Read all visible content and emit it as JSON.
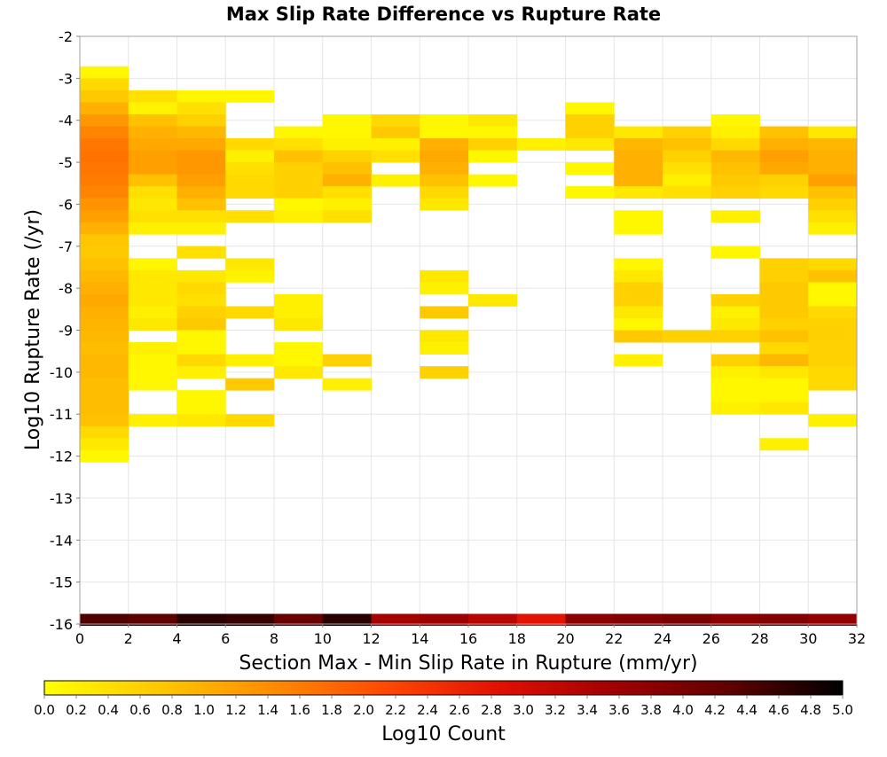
{
  "chart_data": {
    "type": "heatmap",
    "title": "Max Slip Rate Difference vs Rupture Rate",
    "xlabel": "Section Max - Min Slip Rate in Rupture (mm/yr)",
    "ylabel": "Log10 Rupture Rate (/yr)",
    "xlim": [
      0,
      32
    ],
    "ylim": [
      -16,
      -2
    ],
    "x_ticks": [
      "0",
      "2",
      "4",
      "6",
      "8",
      "10",
      "12",
      "14",
      "16",
      "18",
      "20",
      "22",
      "24",
      "26",
      "28",
      "30",
      "32"
    ],
    "y_ticks": [
      "-2",
      "-3",
      "-4",
      "-5",
      "-6",
      "-7",
      "-8",
      "-9",
      "-10",
      "-11",
      "-12",
      "-13",
      "-14",
      "-15",
      "-16"
    ],
    "x_bin_width": 2,
    "y_bin_height": 0.2857,
    "grid": true,
    "colorbar": {
      "label": "Log10 Count",
      "min": 0,
      "max": 5,
      "ticks": [
        "0.0",
        "0.2",
        "0.4",
        "0.6",
        "0.8",
        "1.0",
        "1.2",
        "1.4",
        "1.6",
        "1.8",
        "2.0",
        "2.2",
        "2.4",
        "2.6",
        "2.8",
        "3.0",
        "3.2",
        "3.4",
        "3.6",
        "3.8",
        "4.0",
        "4.2",
        "4.4",
        "4.6",
        "4.8",
        "5.0"
      ],
      "stops": [
        "#ffff00",
        "#ffc800",
        "#ff8c00",
        "#ff4800",
        "#e01000",
        "#a00000",
        "#600000",
        "#000000"
      ]
    },
    "column_centers": [
      1,
      3,
      5,
      7,
      9,
      11,
      13,
      15,
      17,
      19,
      21,
      23,
      25,
      27,
      29,
      31
    ],
    "columns": [
      {
        "x": 1,
        "cells": [
          [
            -2.857,
            0.12
          ],
          [
            -3.143,
            0.5
          ],
          [
            -3.429,
            0.7
          ],
          [
            -3.714,
            1.0
          ],
          [
            -4.0,
            1.3
          ],
          [
            -4.286,
            1.5
          ],
          [
            -4.571,
            1.65
          ],
          [
            -4.857,
            1.7
          ],
          [
            -5.143,
            1.65
          ],
          [
            -5.429,
            1.6
          ],
          [
            -5.714,
            1.5
          ],
          [
            -6.0,
            1.35
          ],
          [
            -6.286,
            1.2
          ],
          [
            -6.571,
            1.0
          ],
          [
            -6.857,
            0.75
          ],
          [
            -7.143,
            0.7
          ],
          [
            -7.429,
            0.8
          ],
          [
            -7.714,
            0.9
          ],
          [
            -8.0,
            1.0
          ],
          [
            -8.286,
            1.1
          ],
          [
            -8.571,
            1.0
          ],
          [
            -8.857,
            0.95
          ],
          [
            -9.143,
            0.9
          ],
          [
            -9.429,
            0.85
          ],
          [
            -9.714,
            0.9
          ],
          [
            -10.0,
            0.9
          ],
          [
            -10.286,
            0.85
          ],
          [
            -10.571,
            0.85
          ],
          [
            -10.857,
            0.85
          ],
          [
            -11.143,
            0.8
          ],
          [
            -11.429,
            0.5
          ],
          [
            -11.714,
            0.3
          ],
          [
            -12.0,
            0.1
          ]
        ]
      },
      {
        "x": 3,
        "cells": [
          [
            -3.429,
            0.4
          ],
          [
            -3.714,
            0.15
          ],
          [
            -4.0,
            0.8
          ],
          [
            -4.286,
            1.0
          ],
          [
            -4.571,
            1.1
          ],
          [
            -4.857,
            1.2
          ],
          [
            -5.143,
            1.2
          ],
          [
            -5.429,
            0.8
          ],
          [
            -5.714,
            0.4
          ],
          [
            -6.0,
            0.3
          ],
          [
            -6.286,
            0.4
          ],
          [
            -6.571,
            0.2
          ],
          [
            -7.429,
            0.12
          ],
          [
            -7.714,
            0.3
          ],
          [
            -8.0,
            0.3
          ],
          [
            -8.286,
            0.3
          ],
          [
            -8.571,
            0.2
          ],
          [
            -8.857,
            0.3
          ],
          [
            -9.429,
            0.2
          ],
          [
            -9.714,
            0.1
          ],
          [
            -10.0,
            0.1
          ],
          [
            -10.286,
            0.1
          ],
          [
            -11.143,
            0.2
          ]
        ]
      },
      {
        "x": 5,
        "cells": [
          [
            -3.429,
            0.12
          ],
          [
            -3.714,
            0.4
          ],
          [
            -4.0,
            0.6
          ],
          [
            -4.286,
            0.9
          ],
          [
            -4.571,
            1.1
          ],
          [
            -4.857,
            1.3
          ],
          [
            -5.143,
            1.3
          ],
          [
            -5.429,
            1.2
          ],
          [
            -5.714,
            1.0
          ],
          [
            -6.0,
            0.8
          ],
          [
            -6.286,
            0.4
          ],
          [
            -6.571,
            0.2
          ],
          [
            -7.143,
            0.4
          ],
          [
            -7.714,
            0.3
          ],
          [
            -8.0,
            0.5
          ],
          [
            -8.286,
            0.4
          ],
          [
            -8.571,
            0.6
          ],
          [
            -8.857,
            0.7
          ],
          [
            -9.143,
            0.1
          ],
          [
            -9.429,
            0.1
          ],
          [
            -9.714,
            0.5
          ],
          [
            -10.0,
            0.2
          ],
          [
            -10.571,
            0.1
          ],
          [
            -10.857,
            0.1
          ],
          [
            -11.143,
            0.3
          ]
        ]
      },
      {
        "x": 7,
        "cells": [
          [
            -3.429,
            0.12
          ],
          [
            -4.571,
            0.5
          ],
          [
            -4.857,
            0.2
          ],
          [
            -5.143,
            0.4
          ],
          [
            -5.429,
            0.5
          ],
          [
            -5.714,
            0.5
          ],
          [
            -6.286,
            0.4
          ],
          [
            -7.429,
            0.3
          ],
          [
            -7.714,
            0.15
          ],
          [
            -8.571,
            0.5
          ],
          [
            -9.714,
            0.2
          ],
          [
            -10.286,
            0.7
          ],
          [
            -11.143,
            0.5
          ]
        ]
      },
      {
        "x": 9,
        "cells": [
          [
            -4.286,
            0.1
          ],
          [
            -4.571,
            0.4
          ],
          [
            -4.857,
            0.8
          ],
          [
            -5.143,
            0.6
          ],
          [
            -5.429,
            0.6
          ],
          [
            -5.714,
            0.6
          ],
          [
            -6.0,
            0.1
          ],
          [
            -6.286,
            0.2
          ],
          [
            -8.286,
            0.2
          ],
          [
            -8.571,
            0.2
          ],
          [
            -8.857,
            0.3
          ],
          [
            -9.429,
            0.1
          ],
          [
            -9.714,
            0.1
          ],
          [
            -10.0,
            0.3
          ]
        ]
      },
      {
        "x": 11,
        "cells": [
          [
            -4.0,
            0.1
          ],
          [
            -4.286,
            0.1
          ],
          [
            -4.571,
            0.2
          ],
          [
            -4.857,
            0.6
          ],
          [
            -5.143,
            0.8
          ],
          [
            -5.429,
            1.0
          ],
          [
            -5.714,
            0.4
          ],
          [
            -6.0,
            0.2
          ],
          [
            -6.286,
            0.4
          ],
          [
            -9.714,
            0.6
          ],
          [
            -10.286,
            0.2
          ]
        ]
      },
      {
        "x": 13,
        "cells": [
          [
            -4.0,
            0.5
          ],
          [
            -4.286,
            0.7
          ],
          [
            -4.571,
            0.2
          ],
          [
            -4.857,
            0.4
          ],
          [
            -5.429,
            0.2
          ]
        ]
      },
      {
        "x": 15,
        "cells": [
          [
            -4.0,
            0.1
          ],
          [
            -4.286,
            0.1
          ],
          [
            -4.571,
            1.0
          ],
          [
            -4.857,
            1.1
          ],
          [
            -5.143,
            1.0
          ],
          [
            -5.429,
            0.8
          ],
          [
            -5.714,
            0.5
          ],
          [
            -6.0,
            0.3
          ],
          [
            -7.714,
            0.3
          ],
          [
            -8.0,
            0.2
          ],
          [
            -8.571,
            0.7
          ],
          [
            -9.143,
            0.3
          ],
          [
            -9.429,
            0.2
          ],
          [
            -10.0,
            0.6
          ]
        ]
      },
      {
        "x": 17,
        "cells": [
          [
            -4.0,
            0.3
          ],
          [
            -4.286,
            0.1
          ],
          [
            -4.571,
            0.6
          ],
          [
            -4.857,
            0.1
          ],
          [
            -5.429,
            0.1
          ],
          [
            -8.286,
            0.3
          ]
        ]
      },
      {
        "x": 19,
        "cells": [
          [
            -4.571,
            0.2
          ]
        ]
      },
      {
        "x": 21,
        "cells": [
          [
            -3.714,
            0.1
          ],
          [
            -4.0,
            0.6
          ],
          [
            -4.286,
            0.6
          ],
          [
            -4.571,
            0.3
          ],
          [
            -5.143,
            0.1
          ],
          [
            -5.714,
            0.1
          ]
        ]
      },
      {
        "x": 23,
        "cells": [
          [
            -4.286,
            0.3
          ],
          [
            -4.571,
            0.9
          ],
          [
            -4.857,
            1.0
          ],
          [
            -5.143,
            1.0
          ],
          [
            -5.429,
            1.0
          ],
          [
            -5.714,
            0.3
          ],
          [
            -6.286,
            0.1
          ],
          [
            -6.571,
            0.1
          ],
          [
            -7.429,
            0.1
          ],
          [
            -7.714,
            0.3
          ],
          [
            -8.0,
            0.6
          ],
          [
            -8.286,
            0.6
          ],
          [
            -8.571,
            0.3
          ],
          [
            -8.857,
            0.1
          ],
          [
            -9.143,
            0.7
          ],
          [
            -9.714,
            0.2
          ]
        ]
      },
      {
        "x": 25,
        "cells": [
          [
            -4.286,
            0.6
          ],
          [
            -4.571,
            0.8
          ],
          [
            -4.857,
            0.6
          ],
          [
            -5.143,
            0.4
          ],
          [
            -5.429,
            0.2
          ],
          [
            -5.714,
            0.4
          ],
          [
            -9.143,
            0.6
          ]
        ]
      },
      {
        "x": 27,
        "cells": [
          [
            -4.0,
            0.1
          ],
          [
            -4.286,
            0.2
          ],
          [
            -4.571,
            0.5
          ],
          [
            -4.857,
            0.9
          ],
          [
            -5.143,
            0.8
          ],
          [
            -5.429,
            0.7
          ],
          [
            -5.714,
            0.6
          ],
          [
            -6.286,
            0.2
          ],
          [
            -7.143,
            0.1
          ],
          [
            -8.286,
            0.6
          ],
          [
            -8.571,
            0.2
          ],
          [
            -8.857,
            0.3
          ],
          [
            -9.143,
            0.6
          ],
          [
            -9.714,
            0.6
          ],
          [
            -10.0,
            0.2
          ],
          [
            -10.286,
            0.1
          ],
          [
            -10.571,
            0.1
          ],
          [
            -10.857,
            0.2
          ]
        ]
      },
      {
        "x": 29,
        "cells": [
          [
            -4.286,
            0.8
          ],
          [
            -4.571,
            1.0
          ],
          [
            -4.857,
            1.2
          ],
          [
            -5.143,
            1.1
          ],
          [
            -5.429,
            0.6
          ],
          [
            -5.714,
            0.5
          ],
          [
            -7.429,
            0.6
          ],
          [
            -7.714,
            0.6
          ],
          [
            -8.0,
            0.7
          ],
          [
            -8.286,
            0.7
          ],
          [
            -8.571,
            0.7
          ],
          [
            -8.857,
            0.6
          ],
          [
            -9.143,
            0.8
          ],
          [
            -9.429,
            0.5
          ],
          [
            -9.714,
            0.9
          ],
          [
            -10.0,
            0.3
          ],
          [
            -10.286,
            0.1
          ],
          [
            -10.571,
            0.1
          ],
          [
            -10.857,
            0.3
          ],
          [
            -11.714,
            0.2
          ]
        ]
      },
      {
        "x": 31,
        "cells": [
          [
            -4.286,
            0.3
          ],
          [
            -4.571,
            0.9
          ],
          [
            -4.857,
            1.0
          ],
          [
            -5.143,
            1.0
          ],
          [
            -5.429,
            1.2
          ],
          [
            -5.714,
            0.8
          ],
          [
            -6.0,
            0.6
          ],
          [
            -6.286,
            0.4
          ],
          [
            -6.571,
            0.2
          ],
          [
            -7.429,
            0.5
          ],
          [
            -7.714,
            0.8
          ],
          [
            -8.0,
            0.1
          ],
          [
            -8.286,
            0.1
          ],
          [
            -8.571,
            0.5
          ],
          [
            -8.857,
            0.6
          ],
          [
            -9.143,
            0.6
          ],
          [
            -9.429,
            0.6
          ],
          [
            -9.714,
            0.6
          ],
          [
            -10.0,
            0.5
          ],
          [
            -10.286,
            0.5
          ],
          [
            -11.143,
            0.2
          ]
        ]
      }
    ],
    "bottom_row": {
      "y": -15.9,
      "values": [
        4.4,
        4.3,
        4.7,
        4.6,
        4.2,
        4.7,
        3.5,
        3.6,
        3.3,
        2.8,
        3.8,
        3.9,
        4.0,
        3.8,
        3.9,
        3.7
      ]
    }
  }
}
